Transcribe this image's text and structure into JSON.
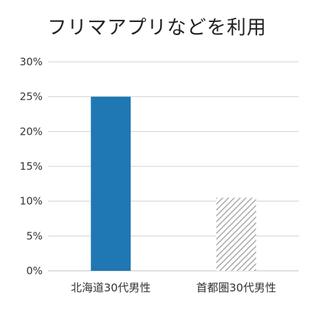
{
  "chart_data": {
    "type": "bar",
    "title": "フリマアプリなどを利用",
    "categories": [
      "北海道30代男性",
      "首都圏30代男性"
    ],
    "values": [
      25,
      10.5
    ],
    "ylim": [
      0,
      30
    ],
    "yticks": [
      "0%",
      "5%",
      "10%",
      "15%",
      "20%",
      "25%",
      "30%"
    ],
    "ytick_values": [
      0,
      5,
      10,
      15,
      20,
      25,
      30
    ],
    "grid": true,
    "bar_styles": [
      "solid",
      "hatched"
    ],
    "colors": {
      "bar1": "#1f77b4",
      "bar2_hatch": "#a6a6a6",
      "grid": "#d0d0d0"
    }
  }
}
